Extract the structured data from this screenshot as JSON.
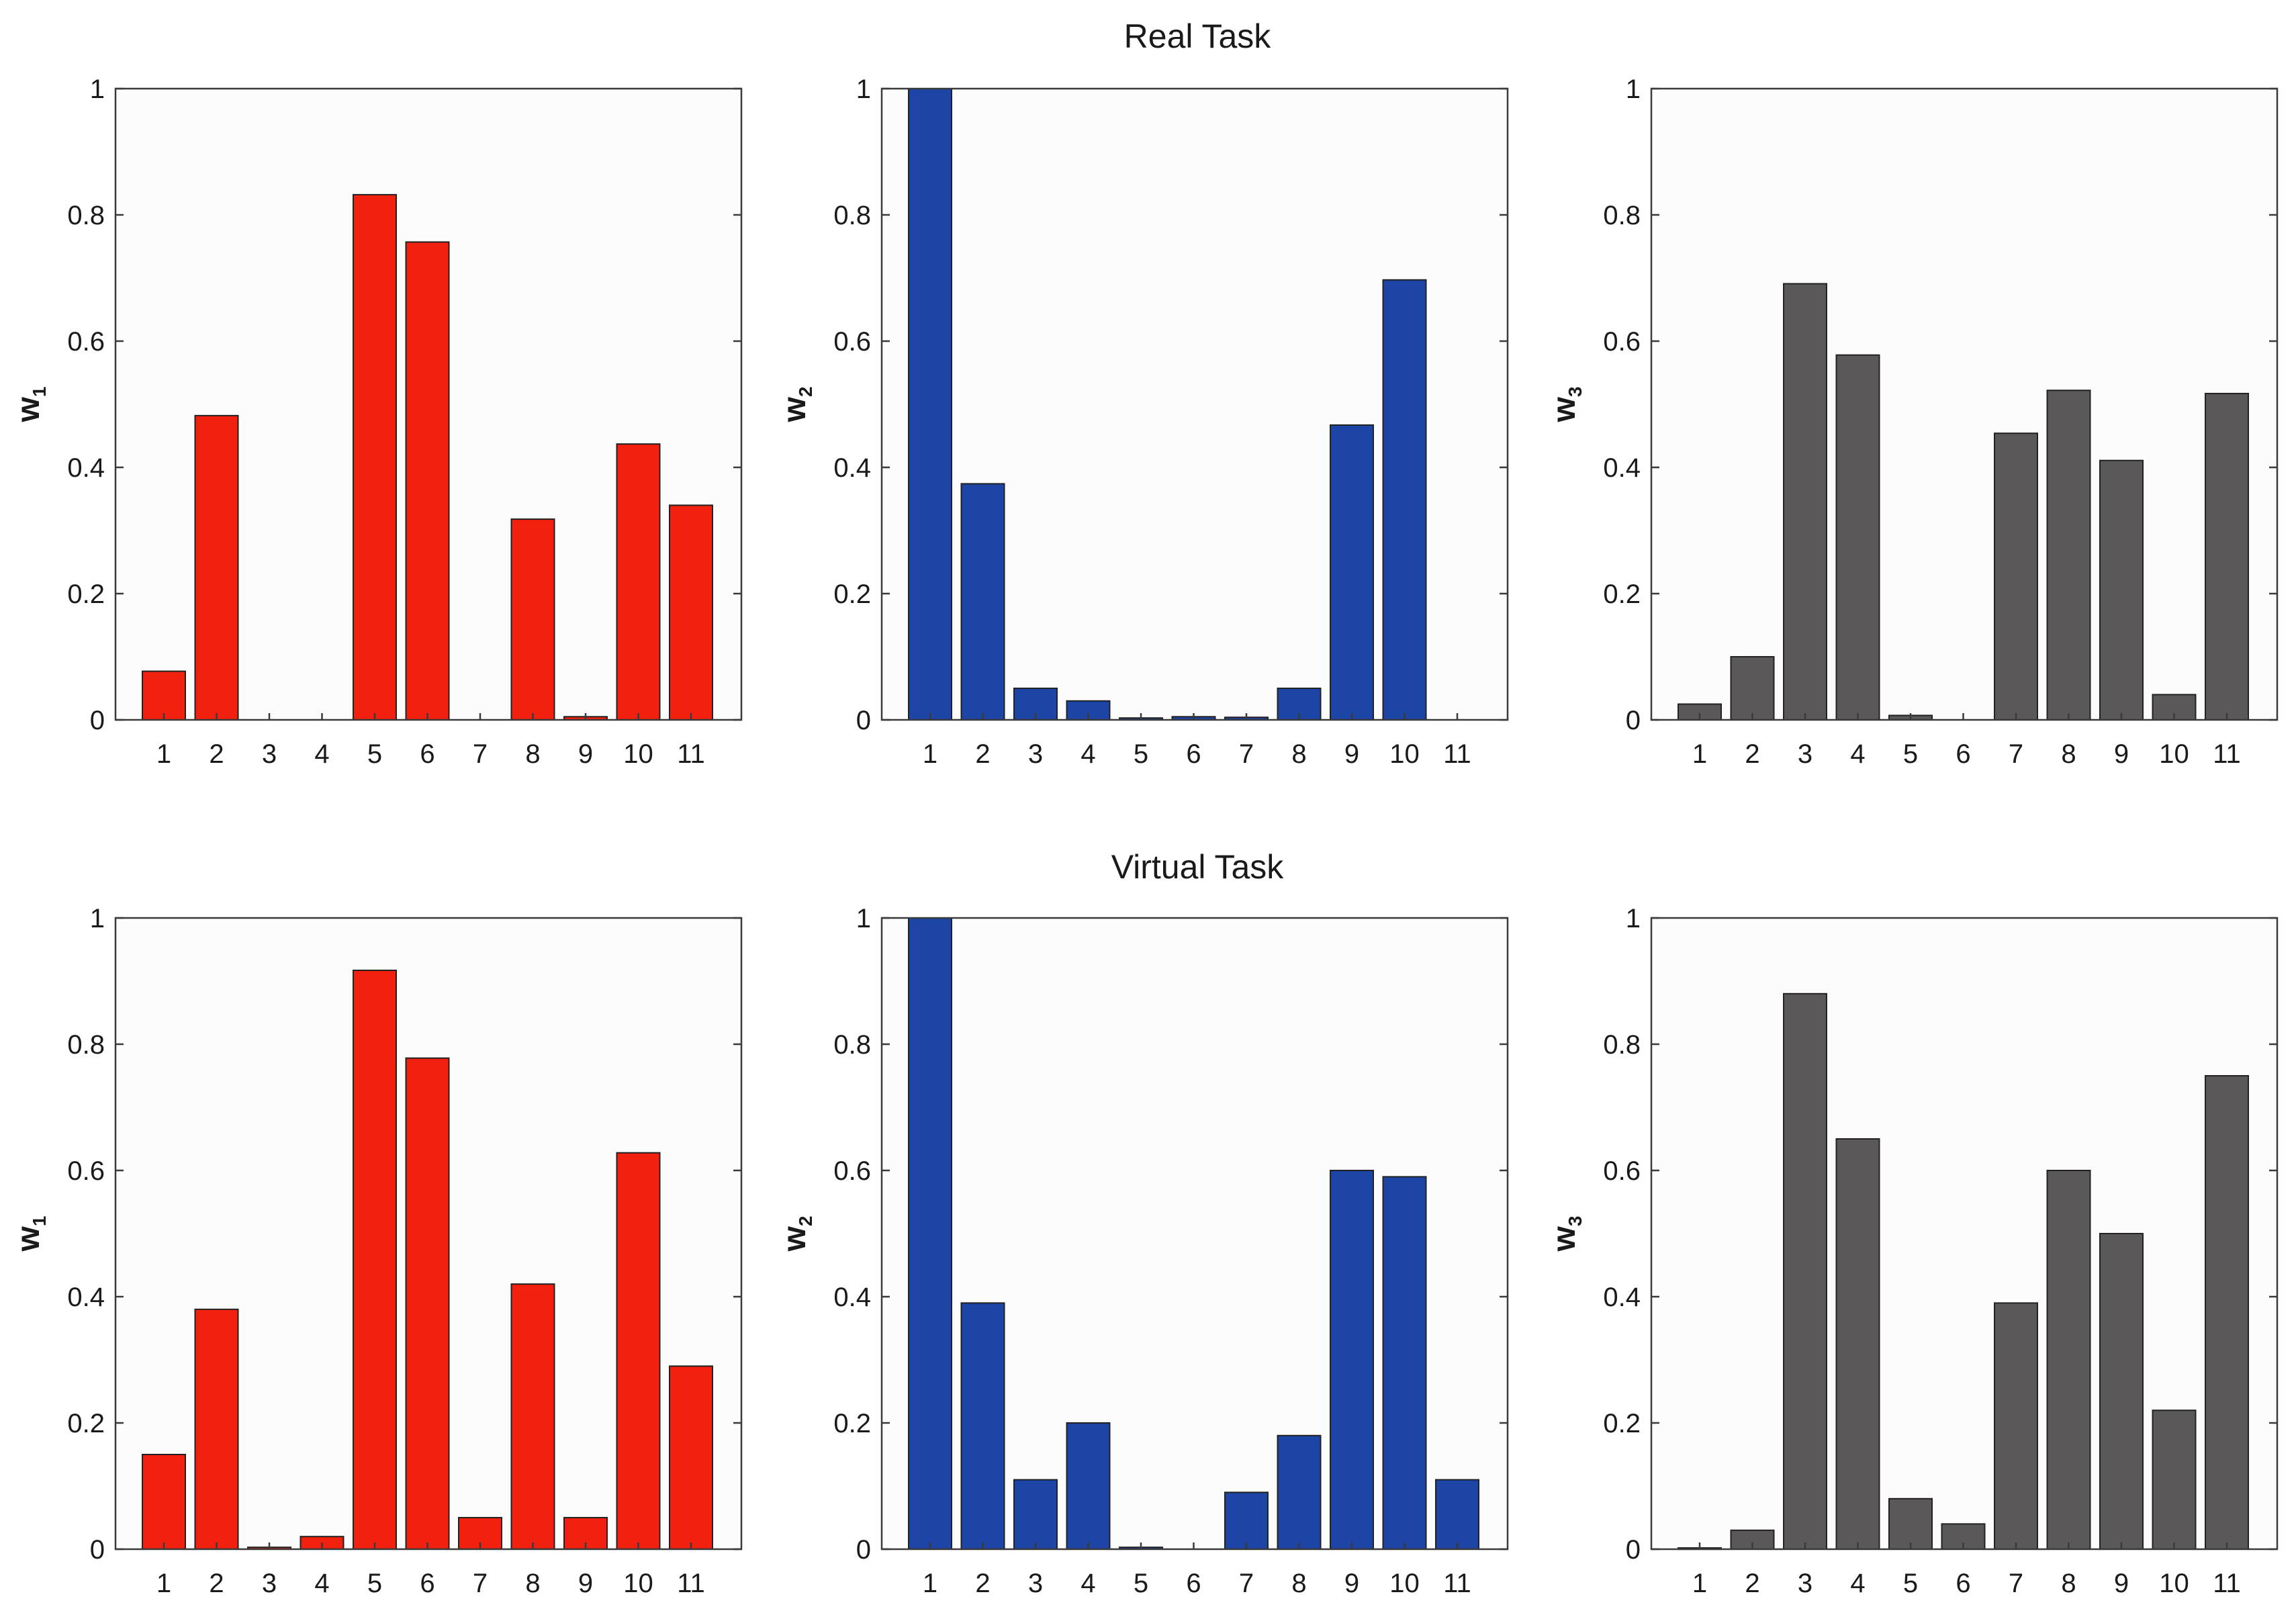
{
  "titles": {
    "top": "Real Task",
    "bottom": "Virtual Task"
  },
  "colors": {
    "red": "#f2200f",
    "blue": "#1c45a6",
    "gray": "#5a5859",
    "plot_bg": "#fcfcfc",
    "axis": "#3a3a3a"
  },
  "chart_data": [
    {
      "type": "bar",
      "section": "Real Task",
      "color": "red",
      "ylabel_main": "w",
      "ylabel_sub": "1",
      "categories": [
        "1",
        "2",
        "3",
        "4",
        "5",
        "6",
        "7",
        "8",
        "9",
        "10",
        "11"
      ],
      "values": [
        0.077,
        0.482,
        0,
        0,
        0.832,
        0.757,
        0,
        0.318,
        0.005,
        0.437,
        0.34
      ],
      "ylim": [
        0,
        1
      ],
      "yticks": [
        "0",
        "0.2",
        "0.4",
        "0.6",
        "0.8",
        "1"
      ],
      "grid": false
    },
    {
      "type": "bar",
      "section": "Real Task",
      "color": "blue",
      "ylabel_main": "w",
      "ylabel_sub": "2",
      "categories": [
        "1",
        "2",
        "3",
        "4",
        "5",
        "6",
        "7",
        "8",
        "9",
        "10",
        "11"
      ],
      "values": [
        1.0,
        0.374,
        0.05,
        0.03,
        0.003,
        0.005,
        0.004,
        0.05,
        0.467,
        0.697,
        0
      ],
      "ylim": [
        0,
        1
      ],
      "yticks": [
        "0",
        "0.2",
        "0.4",
        "0.6",
        "0.8",
        "1"
      ],
      "grid": false
    },
    {
      "type": "bar",
      "section": "Real Task",
      "color": "gray",
      "ylabel_main": "w",
      "ylabel_sub": "3",
      "categories": [
        "1",
        "2",
        "3",
        "4",
        "5",
        "6",
        "7",
        "8",
        "9",
        "10",
        "11"
      ],
      "values": [
        0.025,
        0.1,
        0.691,
        0.578,
        0.007,
        0,
        0.454,
        0.522,
        0.411,
        0.04,
        0.517
      ],
      "ylim": [
        0,
        1
      ],
      "yticks": [
        "0",
        "0.2",
        "0.4",
        "0.6",
        "0.8",
        "1"
      ],
      "grid": false
    },
    {
      "type": "bar",
      "section": "Virtual Task",
      "color": "red",
      "ylabel_main": "w",
      "ylabel_sub": "1",
      "categories": [
        "1",
        "2",
        "3",
        "4",
        "5",
        "6",
        "7",
        "8",
        "9",
        "10",
        "11"
      ],
      "values": [
        0.15,
        0.38,
        0.003,
        0.02,
        0.917,
        0.778,
        0.05,
        0.42,
        0.05,
        0.628,
        0.29
      ],
      "ylim": [
        0,
        1
      ],
      "yticks": [
        "0",
        "0.2",
        "0.4",
        "0.6",
        "0.8",
        "1"
      ],
      "grid": false
    },
    {
      "type": "bar",
      "section": "Virtual Task",
      "color": "blue",
      "ylabel_main": "w",
      "ylabel_sub": "2",
      "categories": [
        "1",
        "2",
        "3",
        "4",
        "5",
        "6",
        "7",
        "8",
        "9",
        "10",
        "11"
      ],
      "values": [
        1.0,
        0.39,
        0.11,
        0.2,
        0.003,
        0,
        0.09,
        0.18,
        0.6,
        0.59,
        0.11
      ],
      "ylim": [
        0,
        1
      ],
      "yticks": [
        "0",
        "0.2",
        "0.4",
        "0.6",
        "0.8",
        "1"
      ],
      "grid": false
    },
    {
      "type": "bar",
      "section": "Virtual Task",
      "color": "gray",
      "ylabel_main": "w",
      "ylabel_sub": "3",
      "categories": [
        "1",
        "2",
        "3",
        "4",
        "5",
        "6",
        "7",
        "8",
        "9",
        "10",
        "11"
      ],
      "values": [
        0.002,
        0.03,
        0.88,
        0.65,
        0.08,
        0.04,
        0.39,
        0.6,
        0.5,
        0.22,
        0.75
      ],
      "ylim": [
        0,
        1
      ],
      "yticks": [
        "0",
        "0.2",
        "0.4",
        "0.6",
        "0.8",
        "1"
      ],
      "grid": false
    }
  ]
}
